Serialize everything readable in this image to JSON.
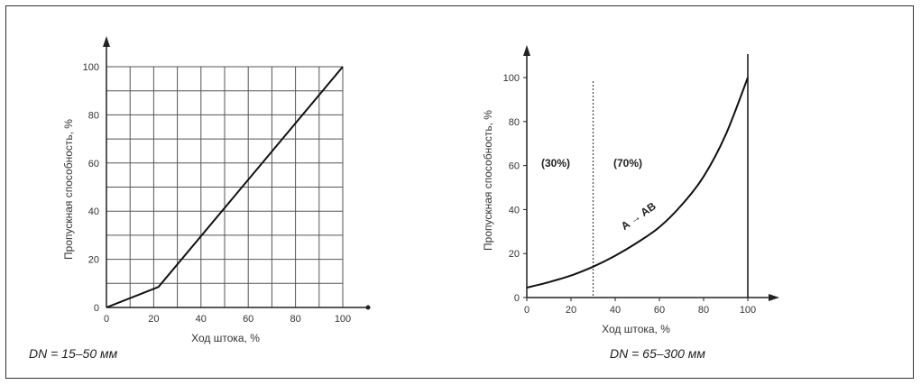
{
  "chart_data": [
    {
      "type": "line",
      "xlabel": "Ход штока, %",
      "ylabel": "Пропускная способность, %",
      "caption": "DN = 15–50 мм",
      "xlim": [
        0,
        100
      ],
      "ylim": [
        0,
        100
      ],
      "x_ticks": [
        "0",
        "20",
        "40",
        "60",
        "80",
        "100"
      ],
      "y_ticks": [
        "0",
        "20",
        "40",
        "60",
        "80",
        "100"
      ],
      "grid": true,
      "series": [
        {
          "x": [
            0,
            22,
            100
          ],
          "y": [
            0,
            8.5,
            100
          ]
        }
      ]
    },
    {
      "type": "line",
      "xlabel": "Ход штока, %",
      "ylabel": "Пропускная способность, %",
      "caption": "DN = 65–300 мм",
      "xlim": [
        0,
        100
      ],
      "ylim": [
        0,
        100
      ],
      "x_ticks": [
        "0",
        "20",
        "40",
        "60",
        "80",
        "100"
      ],
      "y_ticks": [
        "0",
        "20",
        "40",
        "60",
        "80",
        "100"
      ],
      "grid": false,
      "annotations": [
        "(30%)",
        "(70%)",
        "A → AB"
      ],
      "divider_x": 30,
      "series": [
        {
          "x": [
            0,
            10,
            20,
            30,
            40,
            50,
            60,
            70,
            80,
            90,
            100
          ],
          "y": [
            4.5,
            7,
            10,
            14,
            19,
            25,
            32,
            42,
            55,
            74,
            100
          ]
        }
      ]
    }
  ]
}
